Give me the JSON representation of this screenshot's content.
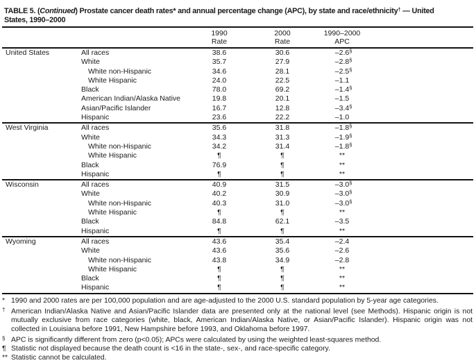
{
  "title": {
    "part1": "TABLE 5. (",
    "part2": "Continued",
    "part3": ") Prostate cancer death rates* and annual percentage change (APC), by state and race/ethnicity",
    "dagger": "†",
    "part4": " — United",
    "line2": "States, 1990–2000"
  },
  "table": {
    "columns": [
      {
        "line1": "1990",
        "line2": "Rate"
      },
      {
        "line1": "2000",
        "line2": "Rate"
      },
      {
        "line1": "1990–2000",
        "line2": "APC"
      }
    ],
    "sections": [
      {
        "state": "United States",
        "rows": [
          {
            "race": "All races",
            "indent": false,
            "r1990": "38.6",
            "r2000": "30.6",
            "apc": "–2.6",
            "apc_marker": "§"
          },
          {
            "race": "White",
            "indent": false,
            "r1990": "35.7",
            "r2000": "27.9",
            "apc": "–2.8",
            "apc_marker": "§"
          },
          {
            "race": "White non-Hispanic",
            "indent": true,
            "r1990": "34.6",
            "r2000": "28.1",
            "apc": "–2.5",
            "apc_marker": "§"
          },
          {
            "race": "White Hispanic",
            "indent": true,
            "r1990": "24.0",
            "r2000": "22.5",
            "apc": "–1.1",
            "apc_marker": ""
          },
          {
            "race": "Black",
            "indent": false,
            "r1990": "78.0",
            "r2000": "69.2",
            "apc": "–1.4",
            "apc_marker": "§"
          },
          {
            "race": "American Indian/Alaska Native",
            "indent": false,
            "r1990": "19.8",
            "r2000": "20.1",
            "apc": "–1.5",
            "apc_marker": ""
          },
          {
            "race": "Asian/Pacific Islander",
            "indent": false,
            "r1990": "16.7",
            "r2000": "12.8",
            "apc": "–3.4",
            "apc_marker": "§"
          },
          {
            "race": "Hispanic",
            "indent": false,
            "r1990": "23.6",
            "r2000": "22.2",
            "apc": "–1.0",
            "apc_marker": ""
          }
        ]
      },
      {
        "state": "West Virginia",
        "rows": [
          {
            "race": "All races",
            "indent": false,
            "r1990": "35.6",
            "r2000": "31.8",
            "apc": "–1.8",
            "apc_marker": "§"
          },
          {
            "race": "White",
            "indent": false,
            "r1990": "34.3",
            "r2000": "31.3",
            "apc": "–1.9",
            "apc_marker": "§"
          },
          {
            "race": "White non-Hispanic",
            "indent": true,
            "r1990": "34.2",
            "r2000": "31.4",
            "apc": "–1.8",
            "apc_marker": "§"
          },
          {
            "race": "White Hispanic",
            "indent": true,
            "r1990": "¶",
            "r2000": "¶",
            "apc": "**",
            "apc_marker": ""
          },
          {
            "race": "Black",
            "indent": false,
            "r1990": "76.9",
            "r2000": "¶",
            "apc": "**",
            "apc_marker": ""
          },
          {
            "race": "Hispanic",
            "indent": false,
            "r1990": "¶",
            "r2000": "¶",
            "apc": "**",
            "apc_marker": ""
          }
        ]
      },
      {
        "state": "Wisconsin",
        "rows": [
          {
            "race": "All races",
            "indent": false,
            "r1990": "40.9",
            "r2000": "31.5",
            "apc": "–3.0",
            "apc_marker": "§"
          },
          {
            "race": "White",
            "indent": false,
            "r1990": "40.2",
            "r2000": "30.9",
            "apc": "–3.0",
            "apc_marker": "§"
          },
          {
            "race": "White non-Hispanic",
            "indent": true,
            "r1990": "40.3",
            "r2000": "31.0",
            "apc": "–3.0",
            "apc_marker": "§"
          },
          {
            "race": "White Hispanic",
            "indent": true,
            "r1990": "¶",
            "r2000": "¶",
            "apc": "**",
            "apc_marker": ""
          },
          {
            "race": "Black",
            "indent": false,
            "r1990": "84.8",
            "r2000": "62.1",
            "apc": "–3.5",
            "apc_marker": ""
          },
          {
            "race": "Hispanic",
            "indent": false,
            "r1990": "¶",
            "r2000": "¶",
            "apc": "**",
            "apc_marker": ""
          }
        ]
      },
      {
        "state": "Wyoming",
        "rows": [
          {
            "race": "All races",
            "indent": false,
            "r1990": "43.6",
            "r2000": "35.4",
            "apc": "–2.4",
            "apc_marker": ""
          },
          {
            "race": "White",
            "indent": false,
            "r1990": "43.6",
            "r2000": "35.6",
            "apc": "–2.6",
            "apc_marker": ""
          },
          {
            "race": "White non-Hispanic",
            "indent": true,
            "r1990": "43.8",
            "r2000": "34.9",
            "apc": "–2.8",
            "apc_marker": ""
          },
          {
            "race": "White Hispanic",
            "indent": true,
            "r1990": "¶",
            "r2000": "¶",
            "apc": "**",
            "apc_marker": ""
          },
          {
            "race": "Black",
            "indent": false,
            "r1990": "¶",
            "r2000": "¶",
            "apc": "**",
            "apc_marker": ""
          },
          {
            "race": "Hispanic",
            "indent": false,
            "r1990": "¶",
            "r2000": "¶",
            "apc": "**",
            "apc_marker": ""
          }
        ]
      }
    ]
  },
  "footnotes": [
    {
      "marker": "*",
      "sup": false,
      "text": "1990 and 2000 rates are per 100,000 population and are age-adjusted to the 2000 U.S. standard population by 5-year age categories."
    },
    {
      "marker": "†",
      "sup": true,
      "text": "American Indian/Alaska Native and Asian/Pacific Islander data are presented only at the national level (see Methods). Hispanic origin is not mutually exclusive from race categories (white, black, American Indian/Alaska Native, or Asian/Pacific Islander). Hispanic origin was not collected in Louisiana before 1991, New Hampshire before 1993, and Oklahoma before 1997."
    },
    {
      "marker": "§",
      "sup": true,
      "text": "APC is significantly different from zero (p<0.05); APCs were calculated by using the weighted least-squares method."
    },
    {
      "marker": "¶",
      "sup": false,
      "text": "Statistic not displayed because the death count is <16 in the state-, sex-, and race-specific category."
    },
    {
      "marker": "**",
      "sup": false,
      "text": "Statistic cannot be calculated."
    }
  ],
  "colors": {
    "text": "#1a1a1a",
    "rule": "#111111",
    "background": "#ffffff"
  }
}
